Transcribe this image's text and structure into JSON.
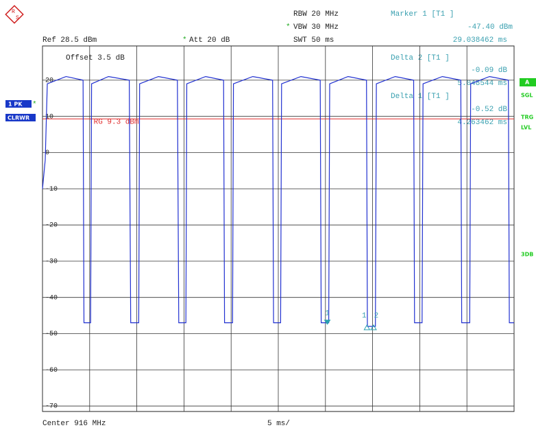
{
  "header": {
    "rbw": "RBW 20 MHz",
    "vbw": "VBW 30 MHz",
    "swt": "SWT 50 ms",
    "ref": "Ref 28.5 dBm",
    "att": "Att 20 dB",
    "star": "*",
    "offset": "Offset 3.5 dB"
  },
  "marker_info": {
    "m1_title": "Marker 1 [T1 ]",
    "m1_value": "-47.40 dBm",
    "m1_time": "29.038462 ms",
    "d2_title": "Delta 2 [T1 ]",
    "d2_value": "-0.09 dB",
    "d2_time": "5.048544 ms",
    "d1_title": "Delta 1 [T1 ]",
    "d1_value": "-0.52 dB",
    "d1_time": "4.263462 ms"
  },
  "side_labels": {
    "trace": "1 PK",
    "mode": "CLRWR",
    "a": "A",
    "sgl": "SGL",
    "trg": "TRG",
    "lvl": "LVL",
    "db3": "3DB"
  },
  "footer": {
    "center": "Center 916 MHz",
    "span": "5 ms/"
  },
  "chart_data": {
    "type": "line",
    "x": [
      0,
      0.29,
      0.51,
      2.5,
      4.3,
      4.4,
      5.1,
      5.2,
      7,
      9.2,
      9.35,
      10.2,
      10.3,
      12.3,
      14.3,
      14.45,
      15.2,
      15.3,
      17.3,
      19.2,
      19.3,
      20.15,
      20.25,
      22.3,
      24.4,
      24.5,
      25.25,
      25.35,
      27.4,
      29.45,
      29.55,
      30.35,
      30.45,
      32.4,
      34.35,
      34.45,
      35.3,
      35.4,
      37.4,
      39.35,
      39.45,
      40.25,
      40.35,
      42.4,
      44.35,
      44.45,
      45.3,
      45.4,
      47.4,
      49.4,
      49.5,
      50
    ],
    "series": [
      {
        "color": "#1f2fd0",
        "values": [
          -10,
          -2,
          19,
          21,
          20,
          -47,
          -47,
          19,
          21,
          20,
          -47,
          -47,
          19,
          21,
          20,
          -47,
          -47,
          19,
          21,
          20,
          -47,
          -47,
          19,
          21,
          20,
          -47,
          -47,
          19,
          21,
          20,
          -47,
          -47,
          19,
          21,
          20,
          -48,
          -48,
          19,
          21,
          20,
          -47,
          -47,
          19,
          21,
          20,
          -47,
          -47,
          19,
          21,
          20,
          -47,
          -47
        ]
      }
    ],
    "xlim": [
      0,
      50
    ],
    "xticks": [
      0,
      5,
      10,
      15,
      20,
      25,
      30,
      35,
      40,
      45,
      50
    ],
    "ylim": [
      -71.5,
      28.5
    ],
    "yticks": [
      20,
      10,
      0,
      -10,
      -20,
      -30,
      -40,
      -50,
      -60,
      -70
    ],
    "grid": true,
    "trigger": {
      "value": 9.3,
      "label": "TRG 9.3 dBm",
      "color": "#e03030"
    },
    "markers": [
      {
        "label": "1",
        "x": 30.2,
        "y": -47.4,
        "filled": true
      },
      {
        "label": "1",
        "x": 34.4,
        "y": -48
      },
      {
        "label": "2",
        "x": 35.1,
        "y": -48
      }
    ]
  }
}
